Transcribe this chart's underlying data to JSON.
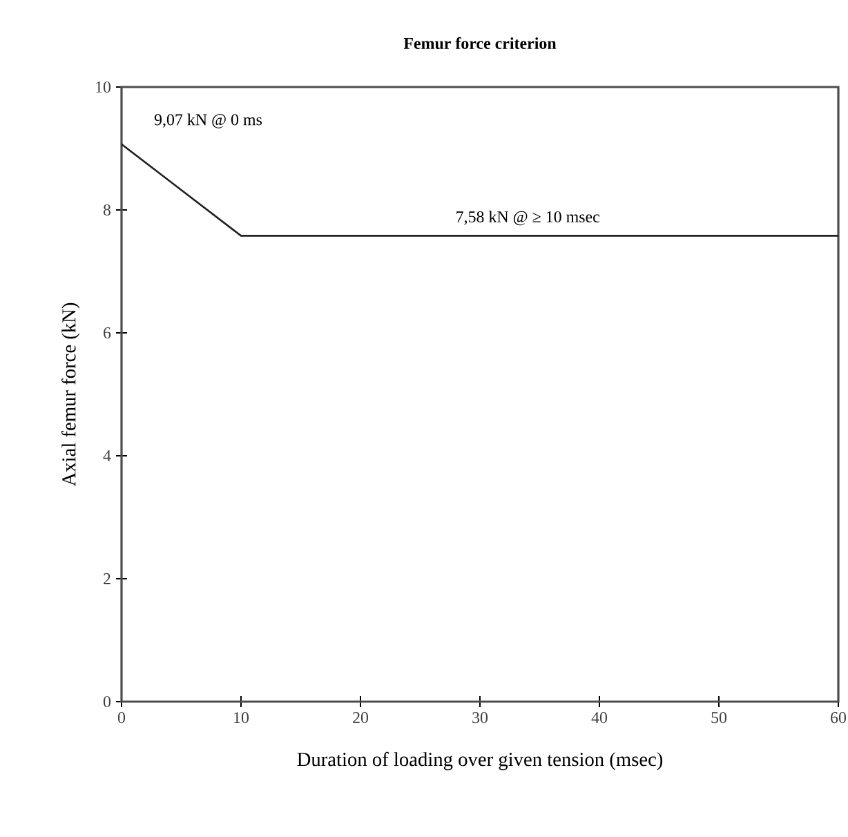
{
  "chart_data": {
    "type": "line",
    "title": "Femur force criterion",
    "xlabel": "Duration of loading over given tension (msec)",
    "ylabel": "Axial femur force (kN)",
    "x": [
      0,
      10,
      60
    ],
    "values": [
      9.07,
      7.58,
      7.58
    ],
    "color": "#222222",
    "xlim": [
      0,
      60
    ],
    "ylim": [
      0,
      10
    ],
    "xticks": [
      0,
      10,
      20,
      30,
      40,
      50,
      60
    ],
    "yticks": [
      0,
      2,
      4,
      6,
      8,
      10
    ],
    "grid": false,
    "marker": "none",
    "line_style": "solid",
    "annotations": [
      {
        "text": "9,07 kN @ 0 ms",
        "x": 0,
        "y": 9.07
      },
      {
        "text": "7,58 kN @ ≥ 10 msec",
        "x": 34,
        "y": 7.58
      }
    ]
  }
}
